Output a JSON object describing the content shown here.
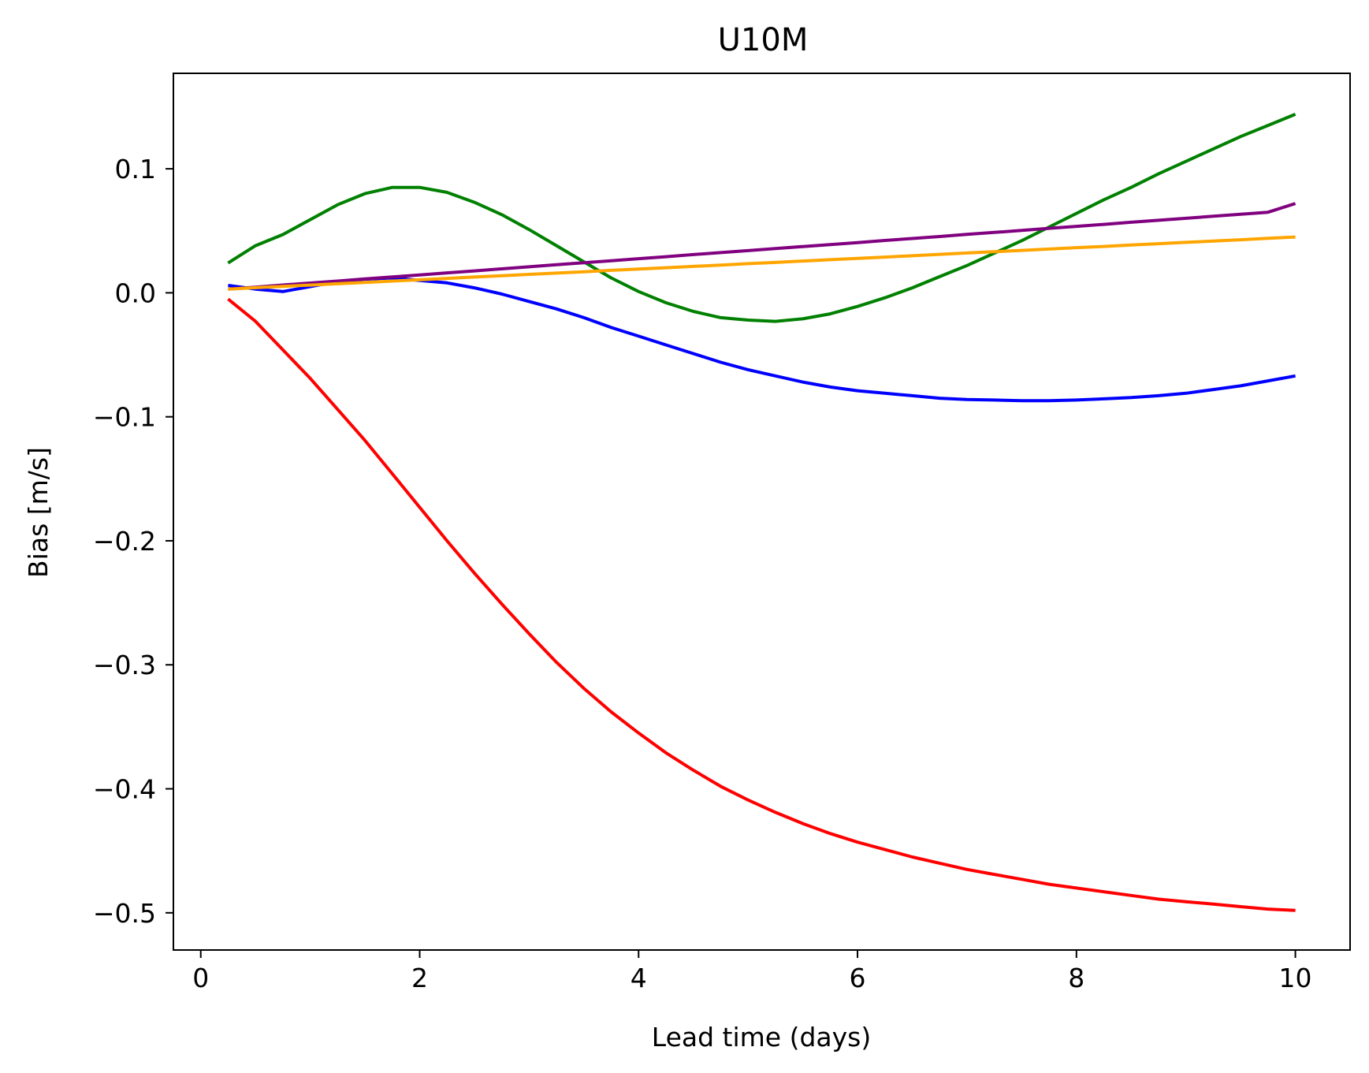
{
  "chart_data": {
    "type": "line",
    "title": "U10M",
    "xlabel": "Lead time (days)",
    "ylabel": "Bias [m/s]",
    "xlim": [
      -0.25,
      10.5
    ],
    "ylim": [
      -0.53,
      0.177
    ],
    "xticks": [
      0,
      2,
      4,
      6,
      8,
      10
    ],
    "xtick_labels": [
      "0",
      "2",
      "4",
      "6",
      "8",
      "10"
    ],
    "yticks": [
      0.1,
      0.0,
      -0.1,
      -0.2,
      -0.3,
      -0.4,
      -0.5
    ],
    "ytick_labels": [
      "0.1",
      "0.0",
      "−0.1",
      "−0.2",
      "−0.3",
      "−0.4",
      "−0.5"
    ],
    "grid": false,
    "legend": "none",
    "x": [
      0.25,
      0.5,
      0.75,
      1.0,
      1.25,
      1.5,
      1.75,
      2.0,
      2.25,
      2.5,
      2.75,
      3.0,
      3.25,
      3.5,
      3.75,
      4.0,
      4.25,
      4.5,
      4.75,
      5.0,
      5.25,
      5.5,
      5.75,
      6.0,
      6.25,
      6.5,
      6.75,
      7.0,
      7.25,
      7.5,
      7.75,
      8.0,
      8.25,
      8.5,
      8.75,
      9.0,
      9.25,
      9.5,
      9.75,
      10.0
    ],
    "series": [
      {
        "color": "#ff0000",
        "values": [
          -0.005,
          -0.023,
          -0.046,
          -0.069,
          -0.094,
          -0.119,
          -0.146,
          -0.173,
          -0.2,
          -0.226,
          -0.251,
          -0.275,
          -0.298,
          -0.319,
          -0.338,
          -0.355,
          -0.371,
          -0.385,
          -0.398,
          -0.409,
          -0.419,
          -0.428,
          -0.436,
          -0.443,
          -0.449,
          -0.455,
          -0.46,
          -0.465,
          -0.469,
          -0.473,
          -0.477,
          -0.48,
          -0.483,
          -0.486,
          -0.489,
          -0.491,
          -0.493,
          -0.495,
          -0.497,
          -0.498
        ]
      },
      {
        "color": "#0000ff",
        "values": [
          0.006,
          0.003,
          0.001,
          0.005,
          0.009,
          0.011,
          0.012,
          0.01,
          0.008,
          0.004,
          -0.001,
          -0.007,
          -0.013,
          -0.02,
          -0.028,
          -0.035,
          -0.042,
          -0.049,
          -0.056,
          -0.062,
          -0.067,
          -0.072,
          -0.076,
          -0.079,
          -0.081,
          -0.083,
          -0.085,
          -0.086,
          -0.0865,
          -0.087,
          -0.087,
          -0.0865,
          -0.0855,
          -0.0845,
          -0.083,
          -0.081,
          -0.078,
          -0.075,
          -0.071,
          -0.067
        ]
      },
      {
        "color": "#008000",
        "values": [
          0.024,
          0.038,
          0.047,
          0.059,
          0.071,
          0.08,
          0.085,
          0.085,
          0.081,
          0.073,
          0.063,
          0.051,
          0.038,
          0.025,
          0.012,
          0.001,
          -0.008,
          -0.015,
          -0.02,
          -0.022,
          -0.023,
          -0.021,
          -0.017,
          -0.011,
          -0.004,
          0.004,
          0.013,
          0.022,
          0.032,
          0.042,
          0.053,
          0.064,
          0.075,
          0.085,
          0.096,
          0.106,
          0.116,
          0.126,
          0.135,
          0.144
        ]
      },
      {
        "color": "#800080",
        "values": [
          0.003,
          0.0046,
          0.0063,
          0.0079,
          0.0095,
          0.0112,
          0.0128,
          0.0144,
          0.0161,
          0.0177,
          0.0193,
          0.021,
          0.0226,
          0.0242,
          0.0259,
          0.0275,
          0.0291,
          0.0308,
          0.0324,
          0.034,
          0.0357,
          0.0373,
          0.0389,
          0.0405,
          0.0422,
          0.0438,
          0.0454,
          0.0471,
          0.0487,
          0.0503,
          0.052,
          0.0536,
          0.0552,
          0.0569,
          0.0585,
          0.0601,
          0.0618,
          0.0634,
          0.065,
          0.072
        ]
      },
      {
        "color": "#ffa500",
        "values": [
          0.003,
          0.0041,
          0.0052,
          0.0062,
          0.0073,
          0.0084,
          0.0095,
          0.0105,
          0.0116,
          0.0127,
          0.0138,
          0.0149,
          0.0159,
          0.017,
          0.0181,
          0.0192,
          0.0202,
          0.0213,
          0.0224,
          0.0235,
          0.0245,
          0.0256,
          0.0267,
          0.0278,
          0.0288,
          0.0299,
          0.031,
          0.0321,
          0.0331,
          0.0342,
          0.0353,
          0.0364,
          0.0374,
          0.0385,
          0.0396,
          0.0407,
          0.0417,
          0.0428,
          0.0439,
          0.045
        ]
      }
    ]
  }
}
